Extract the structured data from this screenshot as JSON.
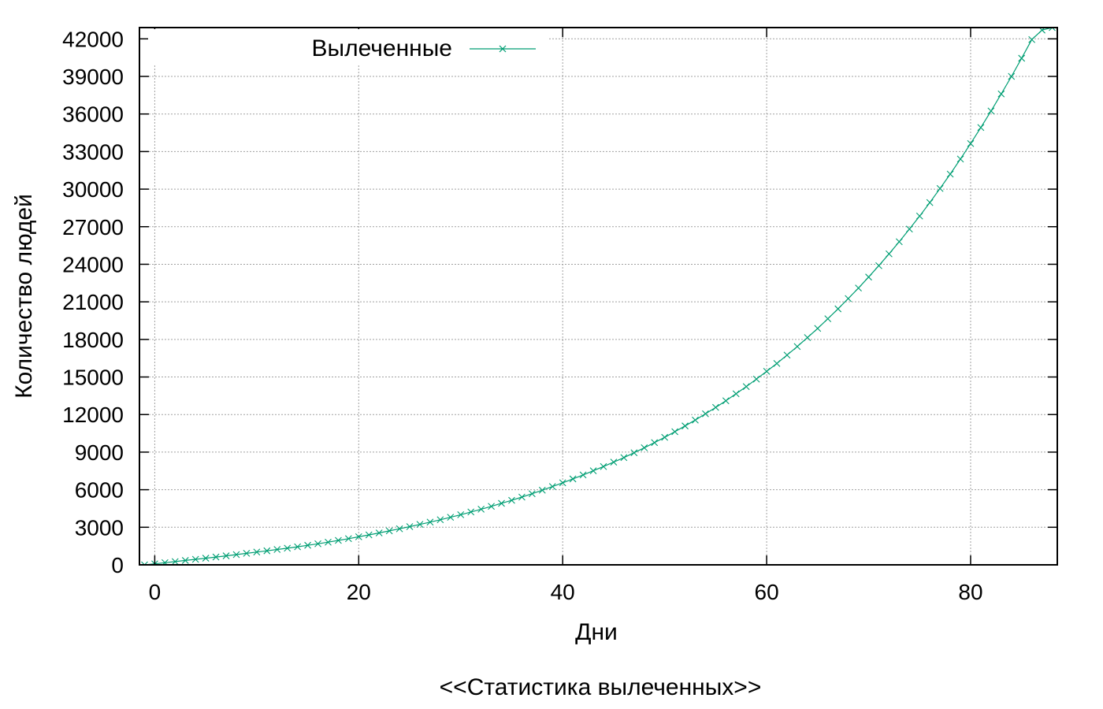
{
  "chart_data": {
    "type": "line",
    "title": "<<Статистика вылеченных>>",
    "xlabel": "Дни",
    "ylabel": "Количество людей",
    "xlim": [
      -1.5,
      88.5
    ],
    "ylim": [
      0,
      42900
    ],
    "xticks": [
      0,
      20,
      40,
      60,
      80
    ],
    "yticks": [
      0,
      3000,
      6000,
      9000,
      12000,
      15000,
      18000,
      21000,
      24000,
      27000,
      30000,
      33000,
      36000,
      39000,
      42000
    ],
    "grid": true,
    "legend_position": "top-left",
    "marker": "x",
    "colors": {
      "series": "#009e73",
      "grid": "#a0a0a0",
      "axis": "#000000"
    },
    "series": [
      {
        "name": "Вылеченные",
        "x": [
          -1,
          0,
          1,
          2,
          3,
          4,
          5,
          6,
          7,
          8,
          9,
          10,
          11,
          12,
          13,
          14,
          15,
          16,
          17,
          18,
          19,
          20,
          21,
          22,
          23,
          24,
          25,
          26,
          27,
          28,
          29,
          30,
          31,
          32,
          33,
          34,
          35,
          36,
          37,
          38,
          39,
          40,
          41,
          42,
          43,
          44,
          45,
          46,
          47,
          48,
          49,
          50,
          51,
          52,
          53,
          54,
          55,
          56,
          57,
          58,
          59,
          60,
          61,
          62,
          63,
          64,
          65,
          66,
          67,
          68,
          69,
          70,
          71,
          72,
          73,
          74,
          75,
          76,
          77,
          78,
          79,
          80,
          81,
          82,
          83,
          84,
          85,
          86,
          87,
          88
        ],
        "y": [
          0,
          80,
          170,
          260,
          350,
          440,
          530,
          625,
          720,
          820,
          920,
          1020,
          1120,
          1225,
          1330,
          1440,
          1560,
          1680,
          1810,
          1950,
          2090,
          2240,
          2390,
          2550,
          2710,
          2880,
          3050,
          3230,
          3410,
          3600,
          3800,
          4000,
          4220,
          4440,
          4670,
          4910,
          5150,
          5410,
          5680,
          5960,
          6250,
          6550,
          6860,
          7180,
          7510,
          7850,
          8200,
          8560,
          8950,
          9350,
          9760,
          10180,
          10630,
          11090,
          11560,
          12060,
          12570,
          13100,
          13660,
          14230,
          14830,
          15450,
          16080,
          16750,
          17430,
          18150,
          18880,
          19650,
          20440,
          21260,
          22100,
          22980,
          23890,
          24830,
          25800,
          26810,
          27850,
          28930,
          30050,
          31200,
          32400,
          33640,
          34920,
          36240,
          37600,
          39000,
          40450,
          41940,
          42700,
          43200
        ]
      }
    ]
  }
}
